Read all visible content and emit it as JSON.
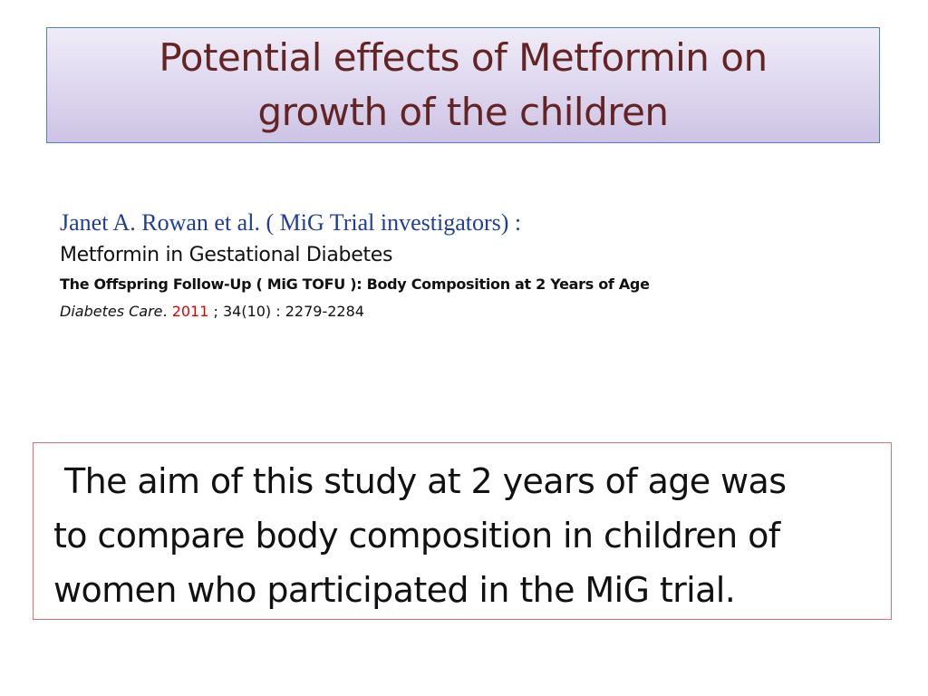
{
  "slide": {
    "title": {
      "line1": "Potential effects of Metformin on",
      "line2": "growth of the children"
    },
    "reference": {
      "authors": "Janet A. Rowan et al.  ( MiG Trial  investigators) :",
      "title": "Metformin in Gestational Diabetes",
      "subtitle": "The  Offspring Follow-Up ( MiG  TOFU ): Body Composition at 2 Years of Age",
      "journal": "Diabetes  Care",
      "journal_sep": ". ",
      "year": "2011",
      "details": " ; 34(10) : 2279-2284"
    },
    "aim": {
      "line1": "The aim of  this study at 2 years of age was",
      "line2": "to compare body composition in children of",
      "line3": "women who participated in the MiG trial."
    }
  },
  "colors": {
    "title_text": "#632423",
    "title_border": "#4f81bd",
    "authors_text": "#1f3d99",
    "year_text": "#e00000",
    "aim_border": "#e07070"
  }
}
